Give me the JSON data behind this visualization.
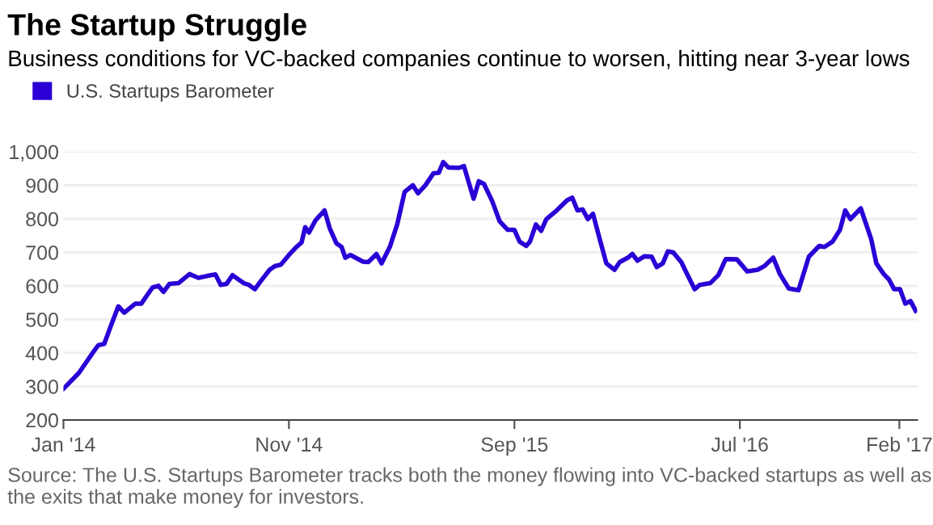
{
  "chart_data": {
    "type": "line",
    "title": "The Startup Struggle",
    "subtitle": "Business conditions for VC-backed companies continue to worsen, hitting near 3-year lows",
    "x": [
      "2014-01-01",
      "2014-01-22",
      "2014-02-10",
      "2014-02-17",
      "2014-02-25",
      "2014-03-05",
      "2014-03-16",
      "2014-03-24",
      "2014-04-08",
      "2014-04-16",
      "2014-05-01",
      "2014-05-09",
      "2014-05-16",
      "2014-05-24",
      "2014-06-05",
      "2014-06-20",
      "2014-07-02",
      "2014-07-17",
      "2014-07-25",
      "2014-08-01",
      "2014-08-09",
      "2014-08-17",
      "2014-09-01",
      "2014-09-08",
      "2014-09-16",
      "2014-09-24",
      "2014-10-06",
      "2014-10-13",
      "2014-10-21",
      "2014-11-01",
      "2014-11-11",
      "2014-11-18",
      "2014-11-23",
      "2014-11-28",
      "2014-12-07",
      "2014-12-19",
      "2014-12-26",
      "2015-01-04",
      "2015-01-11",
      "2015-01-16",
      "2015-01-23",
      "2015-02-09",
      "2015-02-16",
      "2015-02-27",
      "2015-03-06",
      "2015-03-17",
      "2015-03-27",
      "2015-04-06",
      "2015-04-17",
      "2015-04-24",
      "2015-05-04",
      "2015-05-15",
      "2015-05-22",
      "2015-05-28",
      "2015-06-04",
      "2015-06-18",
      "2015-06-25",
      "2015-07-08",
      "2015-07-15",
      "2015-07-22",
      "2015-08-02",
      "2015-08-12",
      "2015-08-23",
      "2015-09-01",
      "2015-09-08",
      "2015-09-17",
      "2015-09-22",
      "2015-09-30",
      "2015-10-07",
      "2015-10-14",
      "2015-10-28",
      "2015-11-11",
      "2015-11-18",
      "2015-11-25",
      "2015-12-02",
      "2015-12-09",
      "2015-12-16",
      "2015-12-24",
      "2016-01-03",
      "2016-01-14",
      "2016-01-21",
      "2016-02-01",
      "2016-02-07",
      "2016-02-14",
      "2016-02-23",
      "2016-03-04",
      "2016-03-11",
      "2016-03-19",
      "2016-03-26",
      "2016-04-02",
      "2016-04-13",
      "2016-04-20",
      "2016-05-01",
      "2016-05-08",
      "2016-05-22",
      "2016-06-02",
      "2016-06-12",
      "2016-06-27",
      "2016-07-11",
      "2016-07-25",
      "2016-08-03",
      "2016-08-15",
      "2016-08-24",
      "2016-09-05",
      "2016-09-18",
      "2016-10-02",
      "2016-10-16",
      "2016-10-23",
      "2016-11-03",
      "2016-11-13",
      "2016-11-20",
      "2016-11-27",
      "2016-12-11",
      "2016-12-25",
      "2017-01-01",
      "2017-01-11",
      "2017-01-18",
      "2017-01-25",
      "2017-02-02",
      "2017-02-09",
      "2017-02-16",
      "2017-02-23"
    ],
    "series": [
      {
        "name": "U.S. Startups Barometer",
        "color": "#2a00d6",
        "values": [
          293,
          341,
          402,
          423,
          427,
          475,
          539,
          520,
          547,
          547,
          595,
          600,
          582,
          606,
          608,
          635,
          624,
          631,
          634,
          603,
          606,
          632,
          608,
          603,
          590,
          614,
          648,
          659,
          663,
          692,
          716,
          729,
          775,
          759,
          796,
          825,
          772,
          727,
          716,
          684,
          692,
          672,
          671,
          695,
          667,
          716,
          783,
          880,
          900,
          876,
          900,
          936,
          937,
          969,
          953,
          952,
          957,
          860,
          912,
          904,
          853,
          793,
          767,
          767,
          732,
          719,
          732,
          783,
          764,
          799,
          825,
          855,
          863,
          825,
          828,
          799,
          815,
          748,
          667,
          648,
          671,
          684,
          695,
          675,
          688,
          687,
          656,
          667,
          703,
          700,
          671,
          639,
          590,
          603,
          608,
          632,
          680,
          679,
          643,
          648,
          659,
          684,
          635,
          592,
          587,
          687,
          719,
          716,
          732,
          767,
          825,
          799,
          831,
          740,
          667,
          635,
          619,
          590,
          590,
          547,
          555,
          526
        ]
      }
    ],
    "xlim": [
      "2014-01-01",
      "2017-02-25"
    ],
    "xticks": [
      {
        "value": "2014-01-01",
        "label": "Jan '14"
      },
      {
        "value": "2014-11-01",
        "label": "Nov '14"
      },
      {
        "value": "2015-09-01",
        "label": "Sep '15"
      },
      {
        "value": "2016-07-01",
        "label": "Jul '16"
      },
      {
        "value": "2017-02-01",
        "label": "Feb '17"
      }
    ],
    "ylim": [
      200,
      1000
    ],
    "yticks": [
      200,
      300,
      400,
      500,
      600,
      700,
      800,
      900,
      {
        "value": 1000,
        "label": "1,000"
      }
    ],
    "grid": "y",
    "legend": "top left",
    "annotations": [
      "Source: The U.S. Startups Barometer tracks both the money flowing into VC-backed startups as well as the exits that make money for investors."
    ]
  }
}
